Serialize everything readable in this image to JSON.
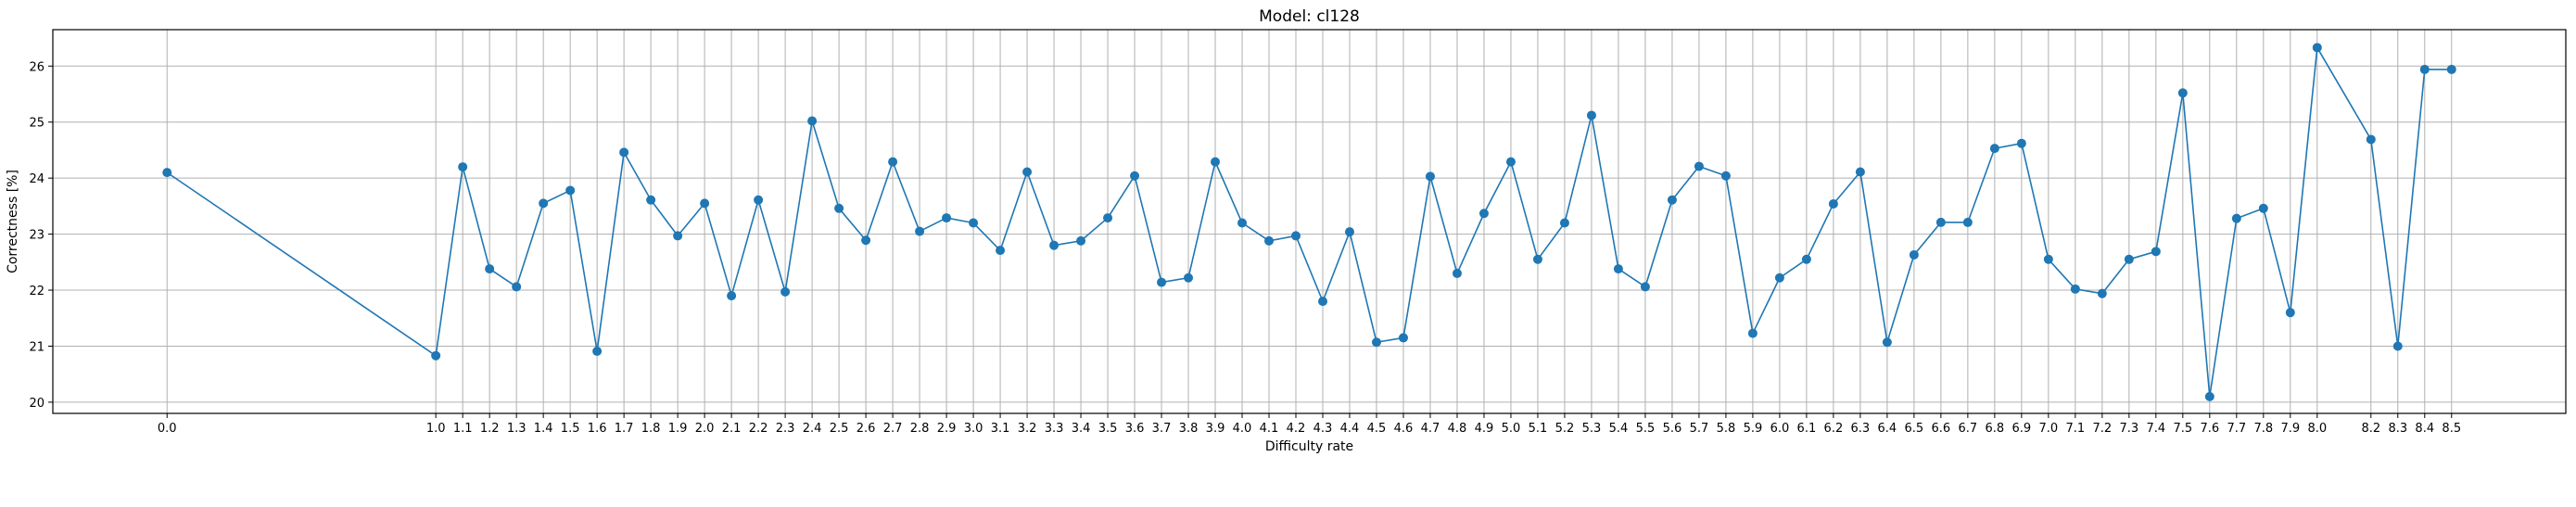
{
  "chart_data": {
    "type": "line",
    "title": "Model: cl128",
    "xlabel": "Difficulty rate",
    "ylabel": "Correctness [%]",
    "xlim": [
      -0.425,
      8.925
    ],
    "ylim": [
      19.8,
      26.65
    ],
    "yticks": [
      20,
      21,
      22,
      23,
      24,
      25,
      26
    ],
    "grid": true,
    "series_color": "#1f77b4",
    "x": [
      0.0,
      1.0,
      1.1,
      1.2,
      1.3,
      1.4,
      1.5,
      1.6,
      1.7,
      1.8,
      1.9,
      2.0,
      2.1,
      2.2,
      2.3,
      2.4,
      2.5,
      2.6,
      2.7,
      2.8,
      2.9,
      3.0,
      3.1,
      3.2,
      3.3,
      3.4,
      3.5,
      3.6,
      3.7,
      3.8,
      3.9,
      4.0,
      4.1,
      4.2,
      4.3,
      4.4,
      4.5,
      4.6,
      4.7,
      4.8,
      4.9,
      5.0,
      5.1,
      5.2,
      5.3,
      5.4,
      5.5,
      5.6,
      5.7,
      5.8,
      5.9,
      6.0,
      6.1,
      6.2,
      6.3,
      6.4,
      6.5,
      6.6,
      6.7,
      6.8,
      6.9,
      7.0,
      7.1,
      7.2,
      7.3,
      7.4,
      7.5,
      7.6,
      7.7,
      7.8,
      7.9,
      8.0,
      8.2,
      8.3,
      8.4,
      8.5
    ],
    "xtick_labels": [
      "0.0",
      "1.0",
      "1.1",
      "1.2",
      "1.3",
      "1.4",
      "1.5",
      "1.6",
      "1.7",
      "1.8",
      "1.9",
      "2.0",
      "2.1",
      "2.2",
      "2.3",
      "2.4",
      "2.5",
      "2.6",
      "2.7",
      "2.8",
      "2.9",
      "3.0",
      "3.1",
      "3.2",
      "3.3",
      "3.4",
      "3.5",
      "3.6",
      "3.7",
      "3.8",
      "3.9",
      "4.0",
      "4.1",
      "4.2",
      "4.3",
      "4.4",
      "4.5",
      "4.6",
      "4.7",
      "4.8",
      "4.9",
      "5.0",
      "5.1",
      "5.2",
      "5.3",
      "5.4",
      "5.5",
      "5.6",
      "5.7",
      "5.8",
      "5.9",
      "6.0",
      "6.1",
      "6.2",
      "6.3",
      "6.4",
      "6.5",
      "6.6",
      "6.7",
      "6.8",
      "6.9",
      "7.0",
      "7.1",
      "7.2",
      "7.3",
      "7.4",
      "7.5",
      "7.6",
      "7.7",
      "7.8",
      "7.9",
      "8.0",
      "8.2",
      "8.3",
      "8.4",
      "8.5"
    ],
    "y": [
      24.1,
      20.83,
      24.2,
      22.38,
      22.06,
      23.55,
      23.78,
      20.91,
      24.46,
      23.61,
      22.97,
      23.55,
      21.9,
      23.61,
      21.97,
      25.02,
      23.46,
      22.89,
      24.29,
      23.05,
      23.29,
      23.2,
      22.71,
      24.11,
      22.8,
      22.88,
      23.29,
      24.04,
      22.14,
      22.22,
      24.29,
      23.2,
      22.88,
      22.97,
      21.8,
      23.04,
      21.07,
      21.15,
      24.03,
      22.3,
      23.37,
      24.29,
      22.55,
      23.2,
      25.12,
      22.38,
      22.06,
      23.61,
      24.21,
      24.04,
      21.23,
      22.22,
      22.55,
      23.54,
      24.11,
      21.07,
      22.63,
      23.21,
      23.21,
      24.53,
      24.62,
      22.55,
      22.02,
      21.94,
      22.55,
      22.69,
      25.52,
      20.1,
      23.28,
      23.46,
      21.6,
      26.33,
      24.69,
      21.0,
      25.94,
      25.94
    ]
  }
}
